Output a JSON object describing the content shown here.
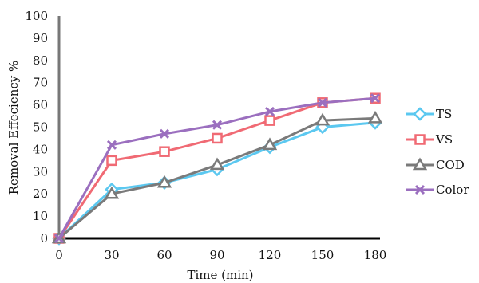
{
  "chart_data": {
    "type": "line",
    "title": "",
    "xlabel": "Time (min)",
    "ylabel": "Removal Effeciency %",
    "x": [
      0,
      30,
      60,
      90,
      120,
      150,
      180
    ],
    "x_ticks": [
      "0",
      "30",
      "60",
      "90",
      "120",
      "150",
      "180"
    ],
    "y_ticks": [
      "0",
      "10",
      "20",
      "30",
      "40",
      "50",
      "60",
      "70",
      "80",
      "90",
      "100"
    ],
    "ylim": [
      0,
      100
    ],
    "grid": false,
    "legend_position": "right",
    "series": [
      {
        "name": "TS",
        "values": [
          0,
          22,
          25,
          31,
          41,
          50,
          52
        ],
        "color": "#5BC8F0",
        "marker": "diamond"
      },
      {
        "name": "VS",
        "values": [
          0,
          35,
          39,
          45,
          53,
          61,
          63
        ],
        "color": "#F06A74",
        "marker": "square"
      },
      {
        "name": "COD",
        "values": [
          0,
          20,
          25,
          33,
          42,
          53,
          54
        ],
        "color": "#7A7A7A",
        "marker": "triangle"
      },
      {
        "name": "Color",
        "values": [
          0,
          42,
          47,
          51,
          57,
          61,
          63
        ],
        "color": "#9B6FBF",
        "marker": "x"
      }
    ]
  }
}
